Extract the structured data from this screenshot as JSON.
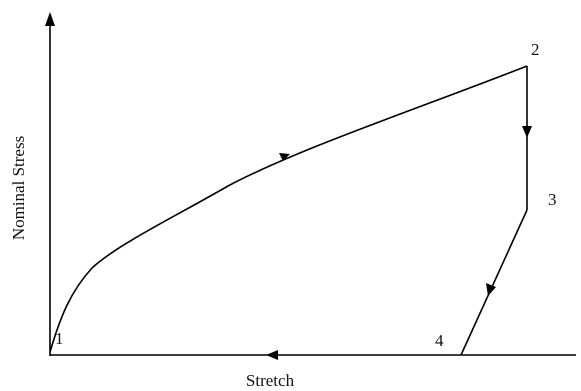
{
  "axes": {
    "x_label": "Stretch",
    "y_label": "Nominal Stress"
  },
  "points": [
    "1",
    "2",
    "3",
    "4"
  ],
  "colors": {
    "stroke": "#000000",
    "background": "#ffffff"
  }
}
